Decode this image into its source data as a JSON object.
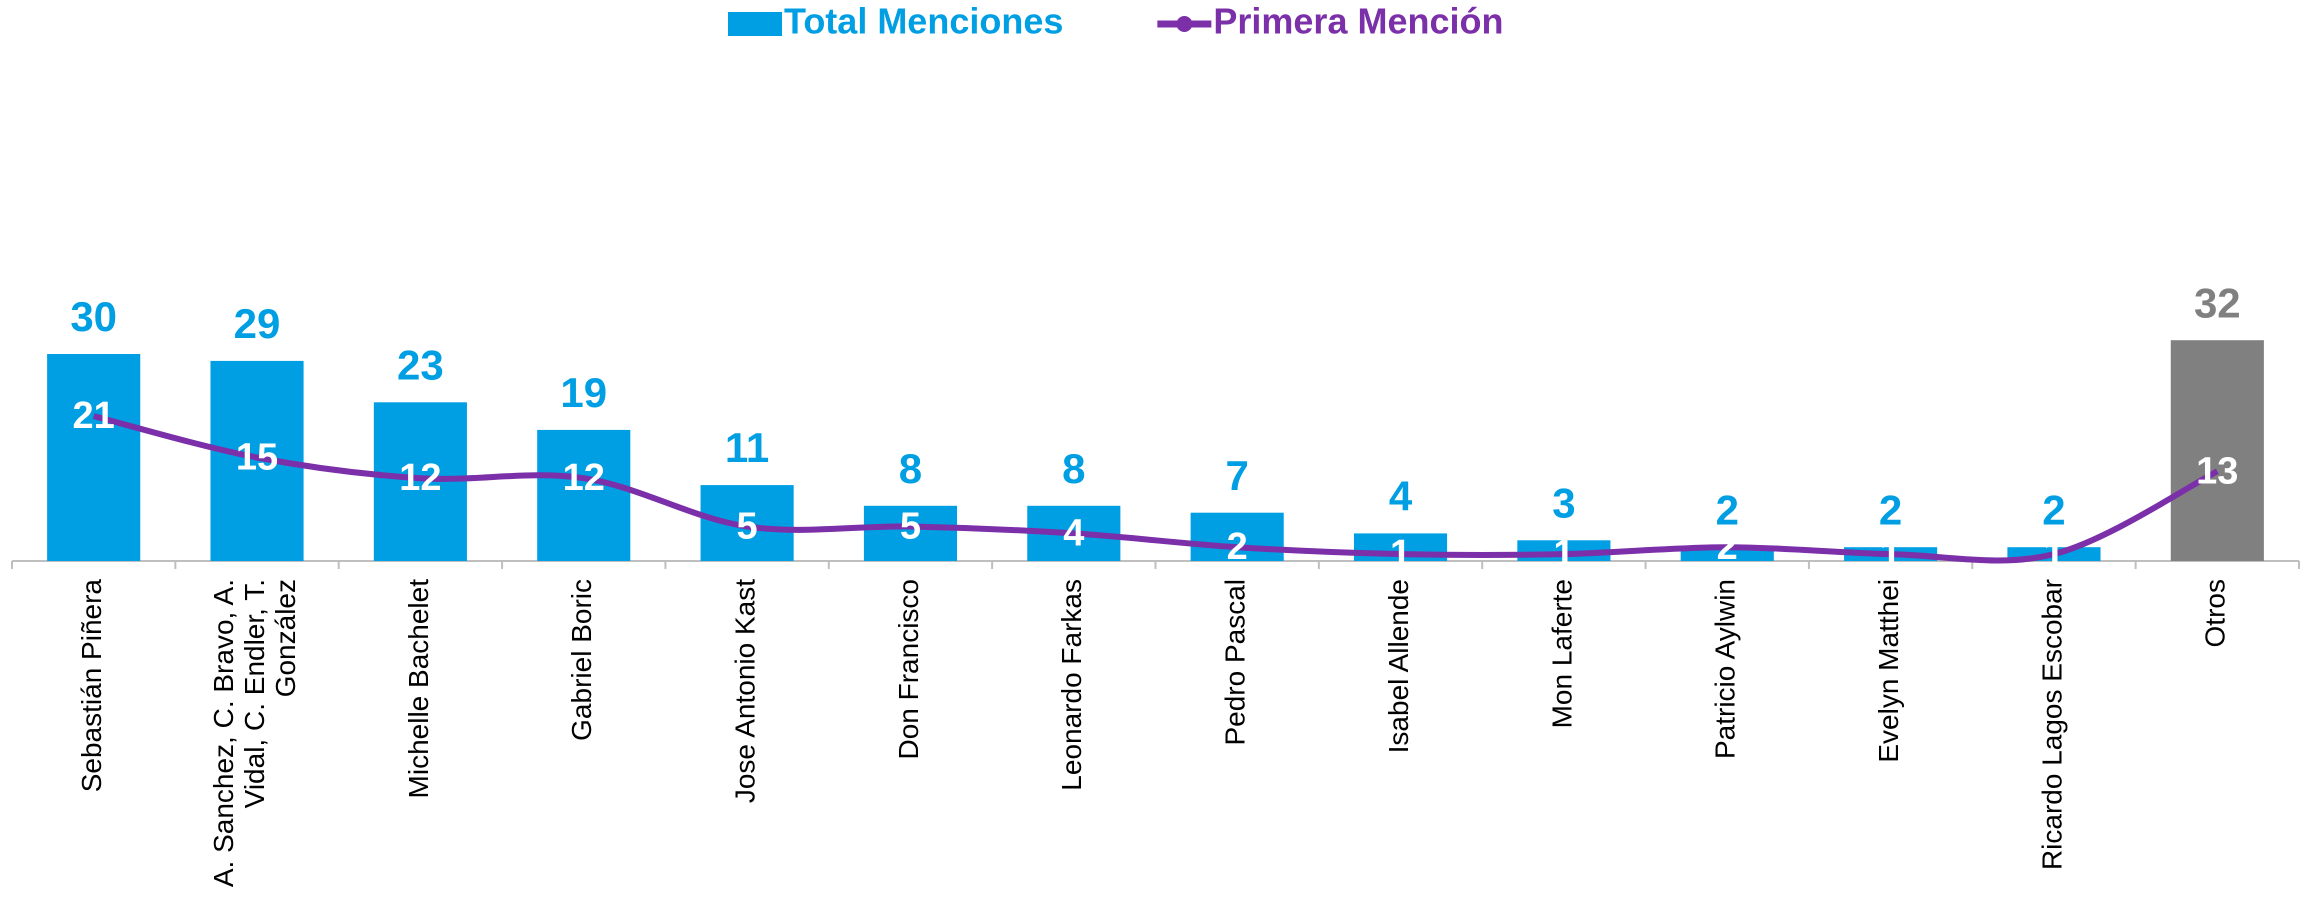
{
  "chart_data": {
    "type": "bar-line",
    "categories": [
      "Sebastián Piñera",
      "A. Sanchez, C. Bravo, A. Vidal, C. Endler, T. González",
      "Michelle Bachelet",
      "Gabriel Boric",
      "Jose Antonio Kast",
      "Don Francisco",
      "Leonardo Farkas",
      "Pedro Pascal",
      "Isabel Allende",
      "Mon Laferte",
      "Patricio Aylwin",
      "Evelyn Matthei",
      "Ricardo Lagos Escobar",
      "Otros"
    ],
    "series": [
      {
        "name": "Total Menciones",
        "type": "bar",
        "color": "#009fe3",
        "colors": [
          "#009fe3",
          "#009fe3",
          "#009fe3",
          "#009fe3",
          "#009fe3",
          "#009fe3",
          "#009fe3",
          "#009fe3",
          "#009fe3",
          "#009fe3",
          "#009fe3",
          "#009fe3",
          "#009fe3",
          "#808080"
        ],
        "values": [
          30,
          29,
          23,
          19,
          11,
          8,
          8,
          7,
          4,
          3,
          2,
          2,
          2,
          32
        ]
      },
      {
        "name": "Primera Mención",
        "type": "line",
        "color": "#7b2fa8",
        "values": [
          21,
          15,
          12,
          12,
          5,
          5,
          4,
          2,
          1,
          1,
          2,
          1,
          1,
          13
        ]
      }
    ],
    "ylim": [
      0,
      70
    ]
  }
}
